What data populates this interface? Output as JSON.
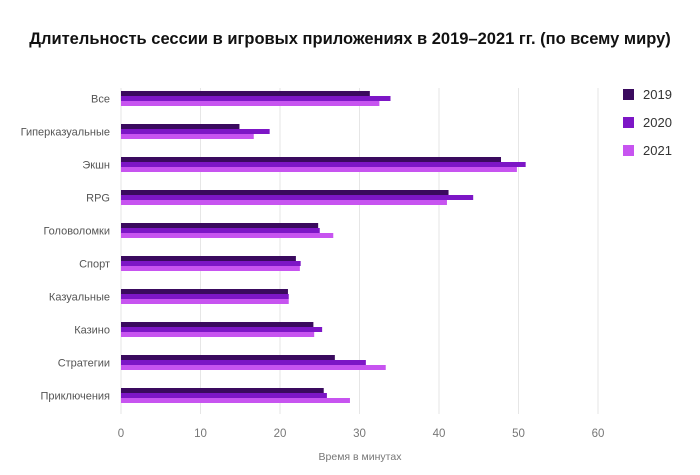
{
  "chart_data": {
    "type": "bar",
    "orientation": "horizontal",
    "title": "Длительность сессии в игровых приложениях в 2019–2021 гг. (по всему миру)",
    "xlabel": "Время в минутах",
    "ylabel": "",
    "xlim": [
      0,
      60
    ],
    "xticks": [
      0,
      10,
      20,
      30,
      40,
      50,
      60
    ],
    "grid": "vertical",
    "legend_position": "right",
    "categories": [
      "Все",
      "Гиперказуальные",
      "Экшн",
      "RPG",
      "Головоломки",
      "Спорт",
      "Казуальные",
      "Казино",
      "Стратегии",
      "Приключения"
    ],
    "series": [
      {
        "name": "2019",
        "color": "#3a0a5e",
        "values": [
          31.3,
          14.9,
          47.8,
          41.2,
          24.8,
          22.0,
          21.0,
          24.2,
          26.9,
          25.5
        ]
      },
      {
        "name": "2020",
        "color": "#7d16c6",
        "values": [
          33.9,
          18.7,
          50.9,
          44.3,
          25.0,
          22.6,
          21.1,
          25.3,
          30.8,
          25.9
        ]
      },
      {
        "name": "2021",
        "color": "#c754f0",
        "values": [
          32.5,
          16.7,
          49.8,
          41.0,
          26.7,
          22.5,
          21.1,
          24.3,
          33.3,
          28.8
        ]
      }
    ]
  }
}
